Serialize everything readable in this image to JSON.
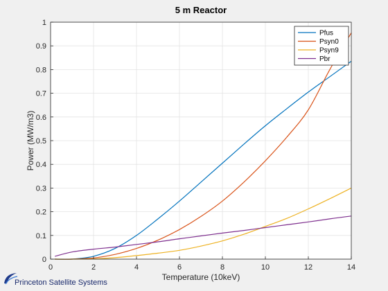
{
  "chart_data": {
    "type": "line",
    "title": "5 m Reactor",
    "xlabel": "Temperature (10keV)",
    "ylabel": "Power (MW/m3)",
    "xlim": [
      0,
      14
    ],
    "ylim": [
      0,
      1
    ],
    "xticks": [
      0,
      2,
      4,
      6,
      8,
      10,
      12,
      14
    ],
    "yticks": [
      0,
      0.1,
      0.2,
      0.3,
      0.4,
      0.5,
      0.6,
      0.7,
      0.8,
      0.9,
      1
    ],
    "grid": true,
    "legend_position": "top-right",
    "x": [
      0.2,
      1,
      2,
      3,
      4,
      5,
      6,
      7,
      8,
      9,
      10,
      11,
      12,
      13,
      14
    ],
    "series": [
      {
        "name": "Pfus",
        "color": "#0072BD",
        "values": [
          0,
          0,
          0.012,
          0.045,
          0.1,
          0.17,
          0.245,
          0.325,
          0.405,
          0.485,
          0.563,
          0.635,
          0.705,
          0.77,
          0.835
        ]
      },
      {
        "name": "Psyn0",
        "color": "#D95319",
        "values": [
          0,
          0,
          0.005,
          0.02,
          0.045,
          0.08,
          0.125,
          0.18,
          0.245,
          0.325,
          0.415,
          0.515,
          0.63,
          0.8,
          0.955
        ]
      },
      {
        "name": "Psyn9",
        "color": "#EDB120",
        "values": [
          0,
          0,
          0.001,
          0.006,
          0.015,
          0.025,
          0.037,
          0.055,
          0.077,
          0.105,
          0.138,
          0.172,
          0.212,
          0.255,
          0.3
        ]
      },
      {
        "name": "Pbr",
        "color": "#7E2F8E",
        "values": [
          0.012,
          0.03,
          0.042,
          0.051,
          0.062,
          0.073,
          0.086,
          0.098,
          0.11,
          0.121,
          0.133,
          0.145,
          0.157,
          0.17,
          0.182
        ]
      }
    ]
  },
  "logo": {
    "text": "Princeton Satellite Systems"
  }
}
